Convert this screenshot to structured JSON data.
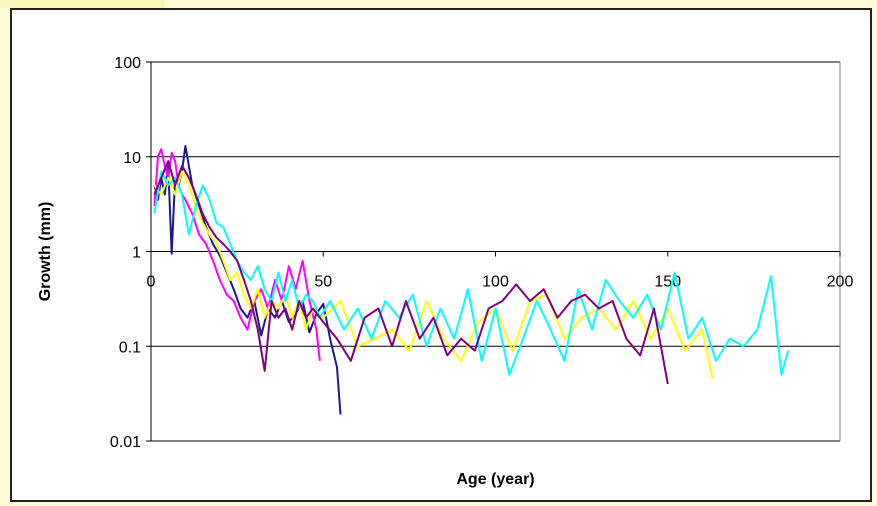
{
  "chart_data": {
    "type": "line",
    "title": "",
    "xlabel": "Age (year)",
    "ylabel": "Growth (mm)",
    "xlim": [
      0,
      200
    ],
    "ylim": [
      0.01,
      100
    ],
    "yscale": "log",
    "x_ticks": [
      "0",
      "50",
      "100",
      "150",
      "200"
    ],
    "y_ticks": [
      "100",
      "10",
      "1",
      "0.1",
      "0.01"
    ],
    "grid": "horizontal",
    "legend": "none",
    "series": [
      {
        "color": "#1a1a8c",
        "x": [
          1,
          2,
          3,
          4,
          5,
          6,
          7,
          8,
          9,
          10,
          11,
          12,
          14,
          16,
          18,
          20,
          22,
          24,
          26,
          28,
          30,
          32,
          34,
          36,
          38,
          40,
          42,
          44,
          46,
          48,
          50,
          52,
          54,
          55
        ],
        "y": [
          5,
          3.5,
          6,
          4,
          8,
          0.95,
          6,
          5,
          7,
          13,
          8,
          5,
          3,
          1.8,
          1.2,
          0.9,
          0.6,
          0.4,
          0.25,
          0.2,
          0.3,
          0.13,
          0.25,
          0.2,
          0.3,
          0.18,
          0.22,
          0.3,
          0.14,
          0.22,
          0.28,
          0.12,
          0.06,
          0.019
        ]
      },
      {
        "color": "#ff00ff",
        "x": [
          1,
          2,
          3,
          4,
          5,
          6,
          7,
          8,
          9,
          10,
          12,
          14,
          16,
          18,
          20,
          22,
          24,
          26,
          28,
          30,
          32,
          34,
          36,
          38,
          40,
          42,
          44,
          46,
          48,
          49
        ],
        "y": [
          3,
          10,
          12,
          8,
          6,
          11,
          9,
          5,
          4,
          3.5,
          2.5,
          1.5,
          1.2,
          0.8,
          0.5,
          0.35,
          0.3,
          0.2,
          0.15,
          0.3,
          0.4,
          0.25,
          0.5,
          0.3,
          0.7,
          0.4,
          0.8,
          0.3,
          0.15,
          0.07
        ]
      },
      {
        "color": "#ffff00",
        "x": [
          1,
          3,
          5,
          7,
          9,
          11,
          13,
          15,
          17,
          19,
          21,
          23,
          25,
          27,
          29,
          31,
          33,
          35,
          37,
          39,
          41,
          43,
          45,
          47,
          50,
          55,
          60,
          65,
          70,
          75,
          80,
          85,
          90,
          95,
          100,
          105,
          110,
          115,
          120,
          125,
          130,
          135,
          140,
          145,
          150,
          155,
          160,
          163
        ],
        "y": [
          5,
          4,
          6,
          4,
          7,
          5,
          3,
          2,
          1.5,
          1.2,
          0.8,
          0.5,
          0.6,
          0.35,
          0.25,
          0.4,
          0.2,
          0.3,
          0.25,
          0.35,
          0.2,
          0.3,
          0.15,
          0.25,
          0.2,
          0.3,
          0.1,
          0.12,
          0.15,
          0.09,
          0.3,
          0.12,
          0.07,
          0.18,
          0.25,
          0.09,
          0.3,
          0.35,
          0.12,
          0.2,
          0.25,
          0.15,
          0.3,
          0.12,
          0.25,
          0.09,
          0.15,
          0.045
        ]
      },
      {
        "color": "#00ffff",
        "x": [
          1,
          3,
          5,
          7,
          9,
          11,
          13,
          15,
          17,
          19,
          21,
          23,
          25,
          27,
          29,
          31,
          33,
          35,
          37,
          39,
          41,
          43,
          45,
          47,
          49,
          52,
          56,
          60,
          64,
          68,
          72,
          76,
          80,
          84,
          88,
          92,
          96,
          100,
          104,
          108,
          112,
          116,
          120,
          124,
          128,
          132,
          136,
          140,
          144,
          148,
          152,
          156,
          160,
          164,
          168,
          172,
          176,
          180,
          183,
          185
        ],
        "y": [
          2.5,
          7,
          5,
          6,
          4,
          1.5,
          3,
          5,
          3.5,
          2,
          1.8,
          1.2,
          0.8,
          0.6,
          0.5,
          0.7,
          0.4,
          0.3,
          0.6,
          0.3,
          0.5,
          0.25,
          0.35,
          0.3,
          0.2,
          0.3,
          0.15,
          0.25,
          0.12,
          0.3,
          0.2,
          0.35,
          0.1,
          0.25,
          0.12,
          0.4,
          0.07,
          0.25,
          0.05,
          0.12,
          0.3,
          0.15,
          0.07,
          0.4,
          0.15,
          0.5,
          0.3,
          0.2,
          0.35,
          0.15,
          0.6,
          0.12,
          0.2,
          0.07,
          0.12,
          0.1,
          0.15,
          0.55,
          0.05,
          0.09
        ]
      },
      {
        "color": "#800080",
        "x": [
          1,
          3,
          5,
          7,
          9,
          11,
          13,
          15,
          17,
          19,
          21,
          23,
          25,
          27,
          29,
          31,
          33,
          35,
          37,
          39,
          41,
          43,
          45,
          47,
          50,
          54,
          58,
          62,
          66,
          70,
          74,
          78,
          82,
          86,
          90,
          94,
          98,
          102,
          106,
          110,
          114,
          118,
          122,
          126,
          130,
          134,
          138,
          142,
          146,
          150
        ],
        "y": [
          4,
          6,
          9,
          5,
          8,
          6,
          4,
          2.5,
          1.8,
          1.4,
          1.2,
          1,
          0.8,
          0.5,
          0.3,
          0.15,
          0.055,
          0.3,
          0.2,
          0.25,
          0.15,
          0.3,
          0.2,
          0.25,
          0.18,
          0.12,
          0.07,
          0.2,
          0.25,
          0.1,
          0.3,
          0.12,
          0.2,
          0.08,
          0.12,
          0.09,
          0.25,
          0.3,
          0.45,
          0.3,
          0.4,
          0.2,
          0.3,
          0.35,
          0.25,
          0.3,
          0.12,
          0.08,
          0.25,
          0.04
        ]
      }
    ]
  }
}
